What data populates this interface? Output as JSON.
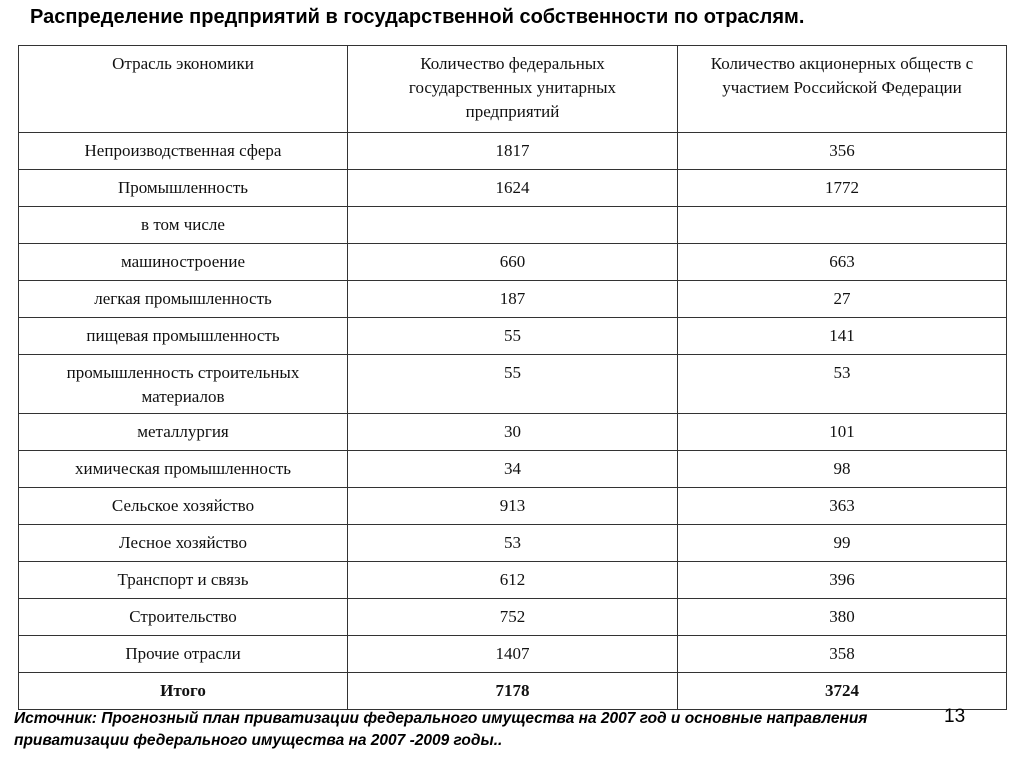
{
  "header": {
    "title": "Распределение предприятий в государственной собственности по отраслям."
  },
  "table": {
    "columns": [
      "Отрасль экономики",
      "Количество федеральных государственных унитарных предприятий",
      "Количество акционерных обществ с участием Российской Федерации"
    ],
    "rows": [
      [
        "Непроизводственная сфера",
        1817,
        356
      ],
      [
        "Промышленность",
        1624,
        1772
      ],
      [
        "в том числе"
      ],
      [
        "машиностроение",
        660,
        663
      ],
      [
        "легкая промышленность",
        187,
        27
      ],
      [
        "пищевая промышленность",
        55,
        141
      ],
      [
        "промышленность строительных материалов",
        55,
        53
      ],
      [
        "металлургия",
        30,
        101
      ],
      [
        "химическая промышленность",
        34,
        98
      ],
      [
        "Сельское хозяйство",
        913,
        363
      ],
      [
        "Лесное хозяйство",
        53,
        99
      ],
      [
        "Транспорт и связь",
        612,
        396
      ],
      [
        "Строительство",
        752,
        380
      ],
      [
        "Прочие отрасли",
        1407,
        358
      ]
    ],
    "total": [
      "Итого",
      7178,
      3724
    ]
  },
  "footer": {
    "source": "Источник: Прогнозный план приватизации федерального имущества на 2007 год и основные направления приватизации федерального имущества на 2007 -2009 годы..",
    "page_number": "13"
  }
}
